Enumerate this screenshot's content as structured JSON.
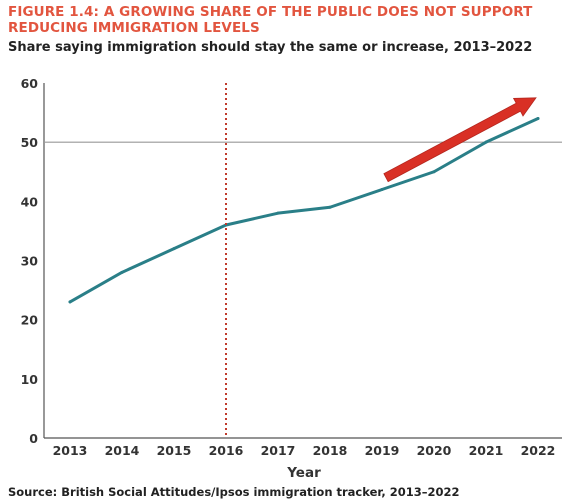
{
  "figure": {
    "label": "FIGURE 1.4: A GROWING SHARE OF THE PUBLIC DOES NOT SUPPORT REDUCING IMMIGRATION LEVELS",
    "subtitle": "Share saying immigration should stay the same or increase, 2013–2022",
    "source": "Source: British Social Attitudes/Ipsos immigration tracker, 2013–2022"
  },
  "chart_data": {
    "type": "line",
    "title": "FIGURE 1.4: A GROWING SHARE OF THE PUBLIC DOES NOT SUPPORT REDUCING IMMIGRATION LEVELS",
    "subtitle": "Share saying immigration should stay the same or increase, 2013–2022",
    "xlabel": "Year",
    "ylabel": "",
    "x": [
      2013,
      2014,
      2015,
      2016,
      2017,
      2018,
      2019,
      2020,
      2021,
      2022
    ],
    "series": [
      {
        "values": [
          23,
          28,
          32,
          36,
          38,
          39,
          42,
          45,
          50,
          54
        ],
        "color": "#2a7f88"
      }
    ],
    "ylim": [
      0,
      60
    ],
    "yticks": [
      0,
      10,
      20,
      30,
      40,
      50,
      60
    ],
    "grid": false,
    "legend": "none",
    "reference_line_y": 50,
    "reference_line_color": "#999999",
    "marker_line_x": 2016,
    "marker_line_color": "#c0392b",
    "trend_arrow": {
      "from": [
        2019,
        44
      ],
      "to": [
        2022,
        57.5
      ],
      "color": "#d93025"
    },
    "axis_color": "#555555"
  }
}
